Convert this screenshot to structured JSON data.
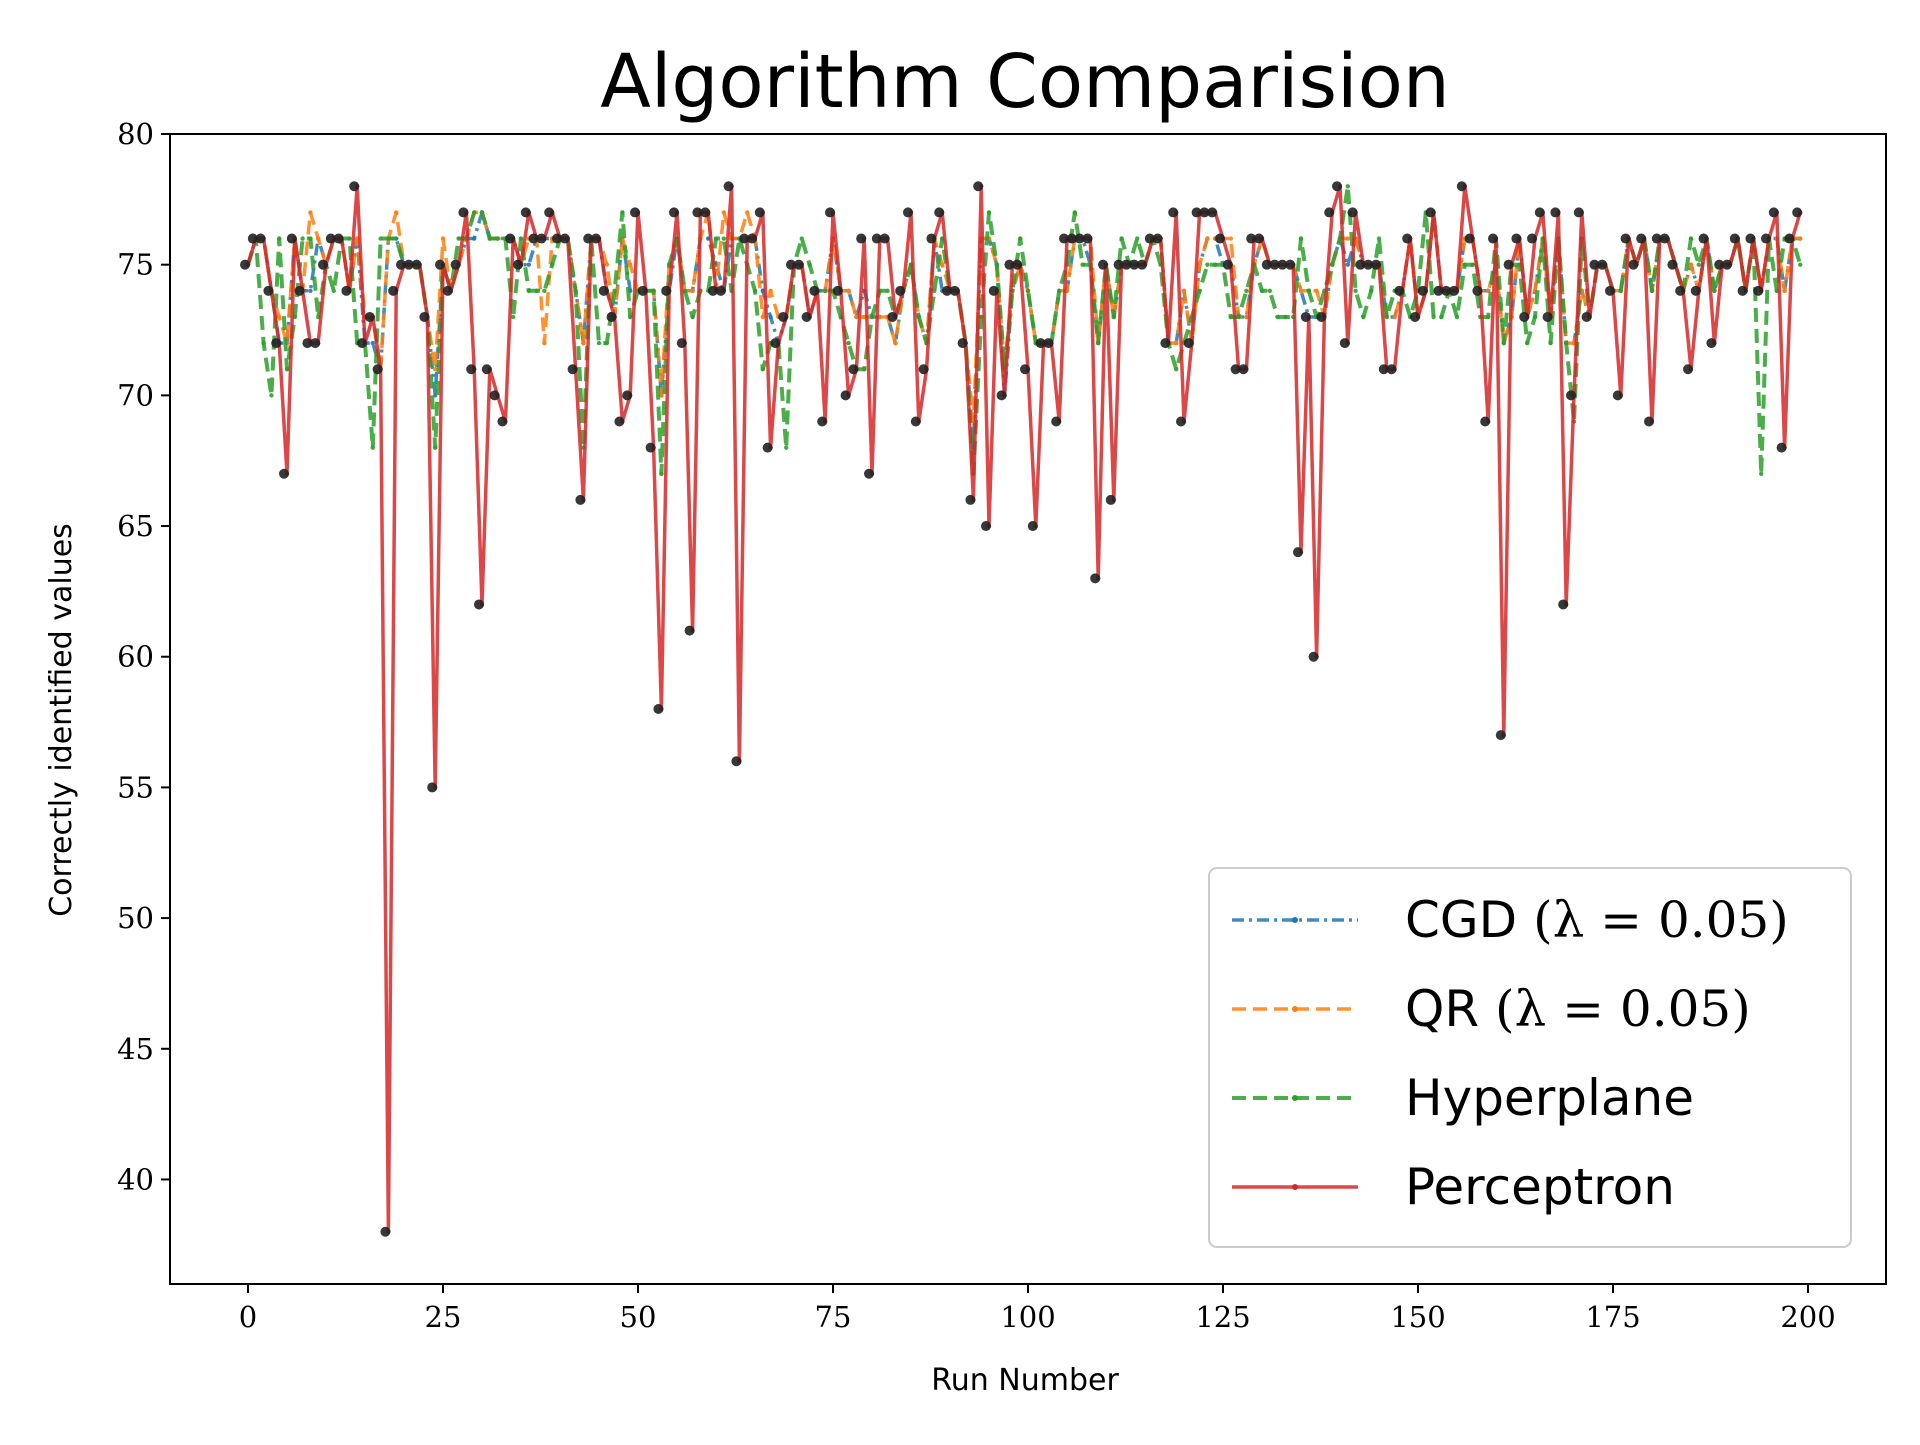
{
  "chart_data": {
    "type": "line",
    "title": "Algorithm Comparision",
    "xlabel": "Run Number",
    "ylabel": "Correctly identified values",
    "xlim": [
      -10,
      210
    ],
    "ylim": [
      36,
      80
    ],
    "xticks": [
      0,
      25,
      50,
      75,
      100,
      125,
      150,
      175,
      200
    ],
    "yticks": [
      40,
      45,
      50,
      55,
      60,
      65,
      70,
      75,
      80
    ],
    "grid": false,
    "legend_position": "lower-right",
    "colors": {
      "CGD": "#1f77b4",
      "QR": "#ff7f0e",
      "Hyperplane": "#2ca02c",
      "Perceptron": "#d62728",
      "dots": "#222222"
    },
    "legend": [
      {
        "key": "CGD",
        "label": "CGD",
        "math": "(λ = 0.05)"
      },
      {
        "key": "QR",
        "label": "QR",
        "math": "(λ = 0.05)"
      },
      {
        "key": "Hyperplane",
        "label": "Hyperplane",
        "math": ""
      },
      {
        "key": "Perceptron",
        "label": "Perceptron",
        "math": ""
      }
    ],
    "x_start": 0,
    "x_step": 1,
    "series": [
      {
        "name": "Perceptron",
        "values": [
          75,
          76,
          76,
          74,
          72,
          67,
          76,
          74,
          72,
          72,
          75,
          76,
          76,
          74,
          78,
          72,
          73,
          71,
          38,
          74,
          75,
          75,
          75,
          73,
          55,
          75,
          74,
          75,
          77,
          71,
          62,
          71,
          70,
          69,
          76,
          75,
          77,
          76,
          76,
          77,
          76,
          76,
          71,
          66,
          76,
          76,
          74,
          73,
          69,
          70,
          77,
          74,
          68,
          58,
          74,
          77,
          72,
          61,
          77,
          77,
          74,
          74,
          78,
          56,
          76,
          76,
          77,
          68,
          72,
          73,
          75,
          75,
          73,
          74,
          69,
          77,
          74,
          70,
          71,
          76,
          67,
          76,
          76,
          73,
          74,
          77,
          69,
          71,
          76,
          77,
          74,
          74,
          72,
          66,
          78,
          65,
          74,
          70,
          75,
          75,
          71,
          65,
          72,
          72,
          69,
          76,
          76,
          76,
          76,
          63,
          75,
          66,
          75,
          75,
          75,
          75,
          76,
          76,
          72,
          77,
          69,
          72,
          77,
          77,
          77,
          76,
          75,
          71,
          71,
          76,
          76,
          75,
          75,
          75,
          75,
          64,
          73,
          60,
          73,
          77,
          78,
          72,
          77,
          75,
          75,
          75,
          71,
          71,
          74,
          76,
          73,
          74,
          77,
          74,
          74,
          74,
          78,
          76,
          74,
          69,
          76,
          57,
          75,
          76,
          73,
          76,
          77,
          73,
          77,
          62,
          70,
          77,
          73,
          75,
          75,
          74,
          70,
          76,
          75,
          76,
          69,
          76,
          76,
          75,
          74,
          71,
          74,
          76,
          72,
          75,
          75,
          76,
          74,
          76,
          74,
          76,
          77,
          68,
          76,
          77
        ]
      },
      {
        "name": "CGD",
        "values": [
          75,
          76,
          76,
          74,
          72,
          72,
          76,
          74,
          74,
          76,
          75,
          76,
          76,
          74,
          76,
          72,
          72,
          71,
          76,
          76,
          75,
          75,
          75,
          73,
          70,
          75,
          74,
          75,
          76,
          76,
          77,
          76,
          76,
          76,
          76,
          75,
          75,
          76,
          76,
          76,
          76,
          76,
          74,
          72,
          76,
          76,
          74,
          73,
          76,
          74,
          74,
          74,
          74,
          70,
          74,
          76,
          74,
          74,
          76,
          76,
          75,
          74,
          76,
          76,
          76,
          76,
          74,
          73,
          72,
          73,
          75,
          75,
          73,
          74,
          74,
          76,
          74,
          74,
          73,
          74,
          73,
          73,
          73,
          72,
          74,
          75,
          73,
          72,
          76,
          74,
          74,
          74,
          72,
          68,
          76,
          76,
          75,
          70,
          74,
          75,
          74,
          72,
          72,
          72,
          74,
          74,
          76,
          76,
          75,
          72,
          75,
          73,
          75,
          75,
          75,
          75,
          76,
          76,
          72,
          72,
          74,
          72,
          75,
          76,
          76,
          75,
          75,
          73,
          73,
          75,
          76,
          75,
          75,
          75,
          75,
          74,
          73,
          73,
          73,
          75,
          76,
          75,
          76,
          75,
          75,
          75,
          73,
          73,
          74,
          76,
          73,
          74,
          77,
          74,
          74,
          74,
          76,
          76,
          74,
          74,
          75,
          72,
          73,
          76,
          73,
          74,
          76,
          73,
          76,
          72,
          72,
          74,
          73,
          75,
          75,
          74,
          74,
          76,
          75,
          76,
          74,
          76,
          76,
          75,
          74,
          75,
          74,
          76,
          74,
          75,
          75,
          76,
          74,
          76,
          74,
          76,
          76,
          74,
          76,
          76
        ]
      },
      {
        "name": "QR",
        "values": [
          75,
          76,
          76,
          74,
          73,
          72,
          76,
          74,
          77,
          76,
          75,
          76,
          76,
          74,
          76,
          73,
          73,
          71,
          76,
          77,
          75,
          75,
          75,
          73,
          71,
          76,
          74,
          75,
          76,
          77,
          77,
          76,
          76,
          76,
          76,
          75,
          76,
          76,
          72,
          76,
          76,
          76,
          74,
          72,
          76,
          76,
          75,
          73,
          76,
          75,
          74,
          74,
          74,
          70,
          75,
          76,
          74,
          74,
          76,
          77,
          74,
          77,
          76,
          76,
          77,
          76,
          73,
          74,
          73,
          73,
          75,
          75,
          73,
          74,
          74,
          76,
          74,
          74,
          73,
          73,
          73,
          73,
          73,
          72,
          74,
          75,
          73,
          72,
          76,
          75,
          74,
          74,
          72,
          69,
          76,
          76,
          75,
          71,
          74,
          75,
          74,
          72,
          72,
          72,
          74,
          74,
          76,
          76,
          76,
          72,
          75,
          73,
          75,
          75,
          75,
          75,
          76,
          76,
          72,
          72,
          74,
          72,
          75,
          76,
          76,
          76,
          76,
          73,
          73,
          75,
          76,
          75,
          75,
          75,
          75,
          74,
          74,
          74,
          73,
          75,
          76,
          76,
          76,
          75,
          75,
          75,
          73,
          73,
          74,
          76,
          73,
          74,
          77,
          74,
          74,
          74,
          76,
          76,
          74,
          74,
          75,
          72,
          73,
          76,
          73,
          74,
          76,
          73,
          76,
          72,
          72,
          74,
          73,
          75,
          75,
          74,
          74,
          76,
          75,
          76,
          74,
          76,
          76,
          75,
          74,
          75,
          74,
          76,
          74,
          75,
          75,
          76,
          74,
          76,
          74,
          76,
          76,
          74,
          76,
          76
        ]
      },
      {
        "name": "Hyperplane",
        "values": [
          75,
          76,
          72,
          70,
          76,
          71,
          73,
          76,
          76,
          73,
          75,
          74,
          76,
          76,
          72,
          72,
          68,
          76,
          76,
          76,
          75,
          75,
          75,
          73,
          68,
          75,
          74,
          76,
          76,
          77,
          77,
          76,
          76,
          76,
          73,
          76,
          74,
          74,
          74,
          75,
          76,
          76,
          74,
          68,
          76,
          72,
          72,
          74,
          77,
          73,
          74,
          74,
          74,
          67,
          75,
          76,
          74,
          73,
          74,
          74,
          76,
          76,
          74,
          76,
          75,
          74,
          71,
          72,
          72,
          68,
          75,
          76,
          75,
          74,
          74,
          74,
          73,
          72,
          71,
          71,
          73,
          74,
          74,
          73,
          74,
          75,
          73,
          72,
          74,
          76,
          74,
          74,
          72,
          67,
          73,
          77,
          75,
          71,
          74,
          76,
          74,
          72,
          72,
          72,
          74,
          75,
          77,
          75,
          75,
          72,
          75,
          73,
          76,
          75,
          76,
          75,
          76,
          75,
          72,
          71,
          72,
          73,
          74,
          75,
          75,
          75,
          73,
          73,
          74,
          75,
          74,
          74,
          73,
          73,
          73,
          76,
          74,
          73,
          74,
          75,
          76,
          78,
          74,
          73,
          74,
          76,
          73,
          74,
          74,
          73,
          74,
          77,
          73,
          73,
          74,
          73,
          75,
          75,
          73,
          73,
          76,
          72,
          75,
          75,
          72,
          73,
          76,
          72,
          76,
          72,
          69,
          76,
          73,
          75,
          75,
          74,
          74,
          76,
          75,
          76,
          74,
          76,
          76,
          75,
          74,
          76,
          75,
          76,
          74,
          75,
          75,
          76,
          74,
          76,
          67,
          76,
          74,
          76,
          76,
          75
        ]
      }
    ]
  }
}
